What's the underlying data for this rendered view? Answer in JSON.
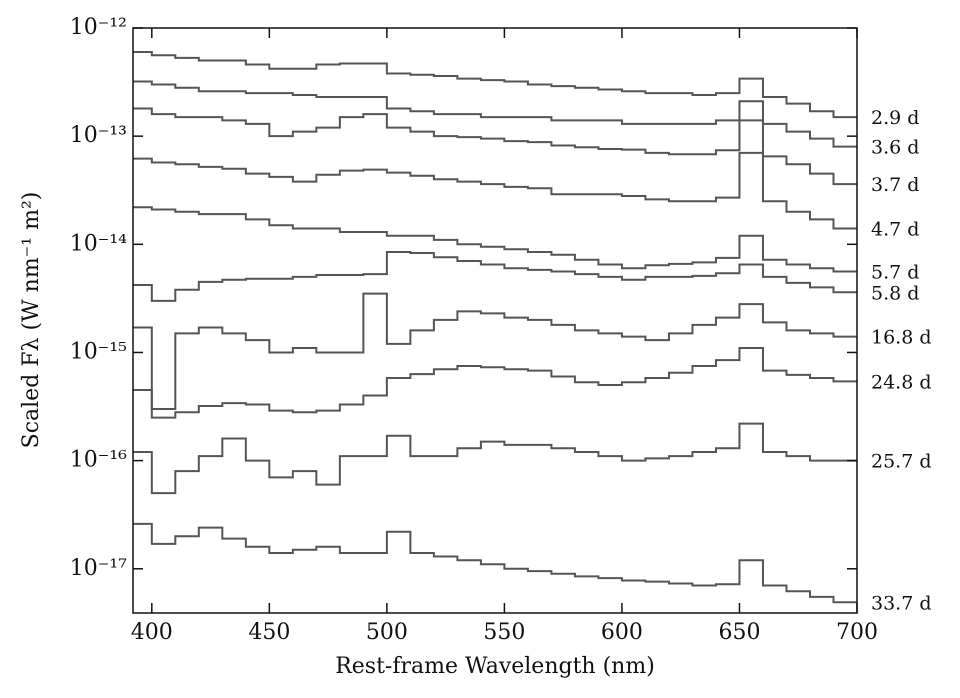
{
  "chart_data": {
    "type": "step",
    "x_label": "Rest-frame Wavelength (nm)",
    "y_label": "Scaled Fλ (W nm⁻¹ m²)",
    "log_y": true,
    "x": [
      395,
      405,
      415,
      425,
      435,
      445,
      455,
      465,
      475,
      485,
      495,
      505,
      515,
      525,
      535,
      545,
      555,
      565,
      575,
      585,
      595,
      605,
      615,
      625,
      635,
      645,
      655,
      665,
      675,
      685,
      695
    ],
    "xlim": [
      392,
      700
    ],
    "xticks": [
      400,
      450,
      500,
      550,
      600,
      650,
      700
    ],
    "ylim": [
      3.9e-18,
      1e-12
    ],
    "yticks": [
      {
        "value": 1e-12,
        "label": "10⁻¹²"
      },
      {
        "value": 1e-13,
        "label": "10⁻¹³"
      },
      {
        "value": 1e-14,
        "label": "10⁻¹⁴"
      },
      {
        "value": 1e-15,
        "label": "10⁻¹⁵"
      },
      {
        "value": 1e-16,
        "label": "10⁻¹⁶"
      },
      {
        "value": 1e-17,
        "label": "10⁻¹⁷"
      }
    ],
    "series": [
      {
        "name": "2.9 d",
        "color": "#555555",
        "values": [
          6e-13,
          5.6e-13,
          5.3e-13,
          5e-13,
          5e-13,
          4.6e-13,
          4.2e-13,
          4.2e-13,
          4.6e-13,
          4.7e-13,
          4.7e-13,
          3.8e-13,
          3.7e-13,
          3.6e-13,
          3.4e-13,
          3.3e-13,
          3.2e-13,
          3e-13,
          2.9e-13,
          2.8e-13,
          2.7e-13,
          2.6e-13,
          2.5e-13,
          2.5e-13,
          2.4e-13,
          2.5e-13,
          3.4e-13,
          2.3e-13,
          2e-13,
          1.7e-13,
          1.5e-13
        ]
      },
      {
        "name": "3.6 d",
        "color": "#555555",
        "values": [
          3.2e-13,
          3e-13,
          2.8e-13,
          2.6e-13,
          2.6e-13,
          2.5e-13,
          2.5e-13,
          2.4e-13,
          2.3e-13,
          2.3e-13,
          2.3e-13,
          1.8e-13,
          1.7e-13,
          1.6e-13,
          1.6e-13,
          1.5e-13,
          1.5e-13,
          1.5e-13,
          1.4e-13,
          1.4e-13,
          1.4e-13,
          1.3e-13,
          1.3e-13,
          1.3e-13,
          1.3e-13,
          1.4e-13,
          2.1e-13,
          1.3e-13,
          1.1e-13,
          9.5e-14,
          8e-14
        ]
      },
      {
        "name": "3.7 d",
        "color": "#555555",
        "values": [
          1.8e-13,
          1.6e-13,
          1.5e-13,
          1.5e-13,
          1.4e-13,
          1.3e-13,
          1e-13,
          1.1e-13,
          1.2e-13,
          1.5e-13,
          1.6e-13,
          1.2e-13,
          1.1e-13,
          1e-13,
          9.8e-14,
          9.5e-14,
          9e-14,
          8.8e-14,
          8.2e-14,
          7.9e-14,
          7.6e-14,
          7.5e-14,
          7e-14,
          6.8e-14,
          6.8e-14,
          7.4e-14,
          1.4e-13,
          6.5e-14,
          5.5e-14,
          4.5e-14,
          3.6e-14
        ]
      },
      {
        "name": "4.7 d",
        "color": "#555555",
        "values": [
          6.2e-14,
          5.7e-14,
          5.5e-14,
          5.2e-14,
          5e-14,
          4.5e-14,
          4.2e-14,
          3.8e-14,
          4.4e-14,
          4.8e-14,
          4.9e-14,
          4.6e-14,
          4.3e-14,
          4e-14,
          3.8e-14,
          3.6e-14,
          3.4e-14,
          3.3e-14,
          2.9e-14,
          2.9e-14,
          2.9e-14,
          2.8e-14,
          2.6e-14,
          2.5e-14,
          2.5e-14,
          2.7e-14,
          7e-14,
          2.5e-14,
          2e-14,
          1.7e-14,
          1.4e-14
        ]
      },
      {
        "name": "5.7 d",
        "color": "#555555",
        "values": [
          2.2e-14,
          2.1e-14,
          2e-14,
          1.9e-14,
          1.9e-14,
          1.7e-14,
          1.5e-14,
          1.4e-14,
          1.4e-14,
          1.3e-14,
          1.3e-14,
          1.2e-14,
          1.2e-14,
          1.1e-14,
          1e-14,
          9.5e-15,
          9e-15,
          8.5e-15,
          8e-15,
          7.2e-15,
          6.5e-15,
          6e-15,
          6.4e-15,
          6.6e-15,
          6.8e-15,
          7.5e-15,
          1.2e-14,
          7.2e-15,
          6.5e-15,
          6e-15,
          5.6e-15
        ]
      },
      {
        "name": "5.8 d",
        "color": "#555555",
        "values": [
          4.2e-15,
          3e-15,
          3.8e-15,
          4.5e-15,
          4.7e-15,
          4.8e-15,
          4.8e-15,
          5e-15,
          5.2e-15,
          5.2e-15,
          5.3e-15,
          8.5e-15,
          8.3e-15,
          7.6e-15,
          7e-15,
          6.5e-15,
          6e-15,
          5.8e-15,
          5.6e-15,
          5.3e-15,
          5e-15,
          4.7e-15,
          5e-15,
          5e-15,
          5.1e-15,
          5.4e-15,
          6.5e-15,
          5e-15,
          4.4e-15,
          4e-15,
          3.6e-15
        ]
      },
      {
        "name": "16.8 d",
        "color": "#555555",
        "values": [
          1.7e-15,
          3e-16,
          1.5e-15,
          1.7e-15,
          1.5e-15,
          1.3e-15,
          1e-15,
          1.1e-15,
          1e-15,
          1e-15,
          3.5e-15,
          1.2e-15,
          1.6e-15,
          2e-15,
          2.4e-15,
          2.3e-15,
          2.1e-15,
          2e-15,
          1.8e-15,
          1.6e-15,
          1.5e-15,
          1.4e-15,
          1.3e-15,
          1.5e-15,
          1.8e-15,
          2.1e-15,
          2.8e-15,
          1.9e-15,
          1.6e-15,
          1.5e-15,
          1.4e-15
        ]
      },
      {
        "name": "24.8 d",
        "color": "#555555",
        "values": [
          4.5e-16,
          2.5e-16,
          2.8e-16,
          3.2e-16,
          3.4e-16,
          3.3e-16,
          2.9e-16,
          2.8e-16,
          2.9e-16,
          3.3e-16,
          4e-16,
          5.8e-16,
          6.3e-16,
          7e-16,
          7.5e-16,
          7.3e-16,
          7e-16,
          6.8e-16,
          6e-16,
          5.3e-16,
          5e-16,
          5.3e-16,
          5.8e-16,
          6.5e-16,
          7.5e-16,
          8.5e-16,
          1.1e-15,
          6.8e-16,
          6.2e-16,
          5.8e-16,
          5.4e-16
        ]
      },
      {
        "name": "25.7 d",
        "color": "#555555",
        "values": [
          1.2e-16,
          5e-17,
          8e-17,
          1.1e-16,
          1.6e-16,
          1e-16,
          7e-17,
          8e-17,
          6e-17,
          1.1e-16,
          1.1e-16,
          1.7e-16,
          1.1e-16,
          1.1e-16,
          1.3e-16,
          1.5e-16,
          1.4e-16,
          1.4e-16,
          1.3e-16,
          1.2e-16,
          1.1e-16,
          1e-16,
          1.05e-16,
          1.1e-16,
          1.2e-16,
          1.3e-16,
          2.2e-16,
          1.2e-16,
          1.1e-16,
          1e-16,
          1e-16
        ]
      },
      {
        "name": "33.7 d",
        "color": "#555555",
        "values": [
          2.6e-17,
          1.7e-17,
          2e-17,
          2.4e-17,
          1.9e-17,
          1.6e-17,
          1.4e-17,
          1.5e-17,
          1.6e-17,
          1.4e-17,
          1.4e-17,
          2.2e-17,
          1.4e-17,
          1.3e-17,
          1.2e-17,
          1.1e-17,
          1e-17,
          9.5e-18,
          9e-18,
          8.5e-18,
          8.2e-18,
          7.8e-18,
          7.6e-18,
          7.3e-18,
          7e-18,
          7.2e-18,
          1.2e-17,
          7e-18,
          6.2e-18,
          5.5e-18,
          4.9e-18
        ]
      }
    ]
  }
}
